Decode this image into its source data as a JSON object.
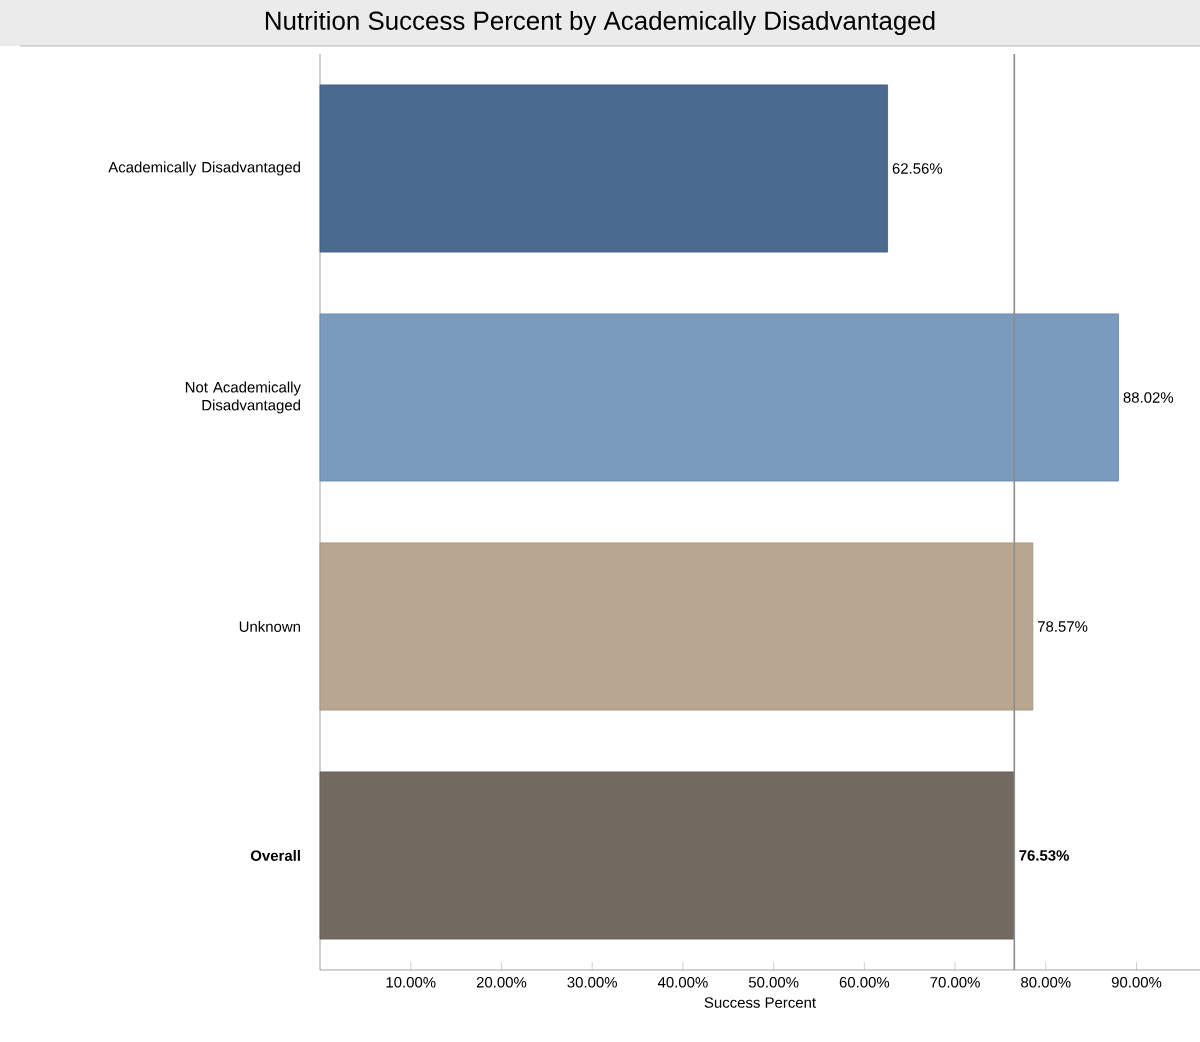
{
  "chart_data": {
    "type": "bar",
    "orientation": "horizontal",
    "title": "Nutrition Success Percent by Academically Disadvantaged",
    "xlabel": "Success Percent",
    "categories": [
      "Academically Disadvantaged",
      "Not Academically Disadvantaged",
      "Unknown",
      "**Overall**"
    ],
    "values": [
      62.56,
      88.02,
      78.57,
      76.53
    ],
    "colors": [
      "#4a6b8f",
      "#7b9bbd",
      "#b9a690",
      "#736a62"
    ],
    "value_labels": [
      "62.56%",
      "88.02%",
      "78.57%",
      "**76.53%**"
    ],
    "xlim": [
      0,
      97
    ],
    "xticks": [
      {
        "value": 10,
        "label": "10.00%"
      },
      {
        "value": 20,
        "label": "20.00%"
      },
      {
        "value": 30,
        "label": "30.00%"
      },
      {
        "value": 40,
        "label": "40.00%"
      },
      {
        "value": 50,
        "label": "50.00%"
      },
      {
        "value": 60,
        "label": "60.00%"
      },
      {
        "value": 70,
        "label": "70.00%"
      },
      {
        "value": 80,
        "label": "80.00%"
      },
      {
        "value": 90,
        "label": "90.00%"
      }
    ],
    "ref_lines": [
      {
        "axis": "x",
        "value": 76.53,
        "color": "#8c8c8c"
      }
    ],
    "grid": false
  }
}
